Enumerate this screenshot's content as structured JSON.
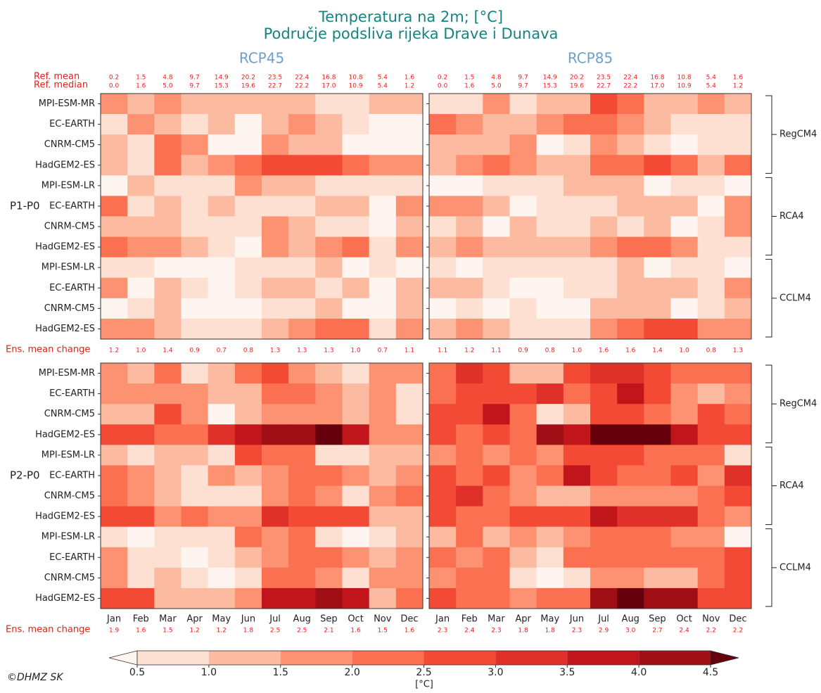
{
  "title": [
    "Temperatura na 2m; [°C]",
    "Područje podsliva rijeka Drave i Dunava"
  ],
  "scenarios": [
    "RCP45",
    "RCP85"
  ],
  "periods": [
    "P1-P0",
    "P2-P0"
  ],
  "ref_mean_label": "Ref. mean",
  "ref_median_label": "Ref. median",
  "ref_mean": [
    "0.2",
    "1.5",
    "4.8",
    "9.7",
    "14.9",
    "20.2",
    "23.5",
    "22.4",
    "16.8",
    "10.8",
    "5.4",
    "1.6"
  ],
  "ref_median": [
    "0.0",
    "1.6",
    "5.0",
    "9.7",
    "15.3",
    "19.6",
    "22.7",
    "22.2",
    "17.0",
    "10.9",
    "5.4",
    "1.2"
  ],
  "ens_label": "Ens. mean change",
  "months": [
    "Jan",
    "Feb",
    "Mar",
    "Apr",
    "May",
    "Jun",
    "Jul",
    "Aug",
    "Sep",
    "Oct",
    "Nov",
    "Dec"
  ],
  "rows": [
    "MPI-ESM-MR",
    "EC-EARTH",
    "CNRM-CM5",
    "HadGEM2-ES",
    "MPI-ESM-LR",
    "EC-EARTH",
    "CNRM-CM5",
    "HadGEM2-ES",
    "MPI-ESM-LR",
    "EC-EARTH",
    "CNRM-CM5",
    "HadGEM2-ES"
  ],
  "groups": [
    "RegCM4",
    "RCA4",
    "CCLM4"
  ],
  "colorbar": {
    "ticks": [
      0.5,
      {
        "value": 1,
        "label": "1.0"
      },
      1.5,
      {
        "value": 2,
        "label": "2.0"
      },
      2.5,
      {
        "value": 3,
        "label": "3.0"
      },
      3.5,
      {
        "value": 4,
        "label": "4.0"
      },
      4.5
    ],
    "colors": [
      "#fff5f0",
      "#fee0d2",
      "#fcbba1",
      "#fc9272",
      "#fb7050",
      "#f34a36",
      "#e0302a",
      "#c0151b",
      "#a00f16",
      "#67000d"
    ],
    "label": "[°C]"
  },
  "credit": "©DHMZ SK",
  "chart_data": [
    {
      "type": "heatmap",
      "ens_mean": [
        "1.2",
        "1.0",
        "1.4",
        "0.9",
        "0.7",
        "0.8",
        "1.3",
        "1.3",
        "1.3",
        "1.0",
        "0.7",
        "1.1"
      ],
      "values": [
        [
          1.8,
          1.3,
          1.8,
          1.3,
          1.3,
          1.3,
          1.3,
          1.3,
          0.8,
          0.8,
          1.3,
          1.3
        ],
        [
          0.8,
          1.8,
          1.3,
          0.8,
          1.3,
          0.3,
          1.3,
          1.8,
          1.3,
          0.8,
          0.3,
          0.3
        ],
        [
          1.3,
          0.8,
          2.3,
          1.8,
          0.3,
          0.3,
          1.8,
          1.3,
          1.3,
          0.3,
          0.3,
          0.3
        ],
        [
          1.3,
          0.8,
          2.3,
          1.3,
          1.8,
          2.3,
          2.8,
          2.8,
          2.8,
          2.3,
          1.8,
          1.8
        ],
        [
          0.3,
          1.3,
          0.8,
          0.8,
          0.8,
          1.8,
          1.3,
          1.3,
          0.8,
          0.8,
          0.8,
          0.8
        ],
        [
          2.3,
          0.8,
          1.3,
          0.8,
          1.3,
          0.8,
          0.8,
          0.8,
          1.3,
          1.3,
          0.3,
          1.8
        ],
        [
          1.3,
          1.3,
          1.3,
          0.8,
          0.8,
          0.8,
          1.8,
          1.3,
          0.8,
          0.8,
          0.3,
          1.3
        ],
        [
          2.3,
          1.8,
          1.8,
          1.3,
          0.8,
          0.3,
          1.8,
          1.3,
          1.8,
          2.3,
          0.8,
          1.8
        ],
        [
          0.8,
          0.8,
          0.3,
          0.3,
          0.3,
          0.8,
          0.8,
          0.8,
          1.3,
          0.3,
          0.8,
          0.3
        ],
        [
          1.8,
          0.3,
          1.3,
          0.8,
          0.3,
          0.8,
          1.3,
          1.3,
          0.8,
          1.3,
          0.3,
          1.3
        ],
        [
          0.3,
          0.8,
          1.3,
          0.3,
          0.3,
          0.3,
          0.8,
          0.8,
          1.3,
          0.3,
          0.3,
          1.3
        ],
        [
          1.8,
          1.8,
          1.3,
          0.8,
          0.8,
          0.8,
          1.3,
          1.8,
          2.3,
          2.3,
          0.8,
          1.8
        ]
      ]
    },
    {
      "type": "heatmap",
      "ens_mean": [
        "1.1",
        "1.2",
        "1.1",
        "0.9",
        "0.8",
        "1.0",
        "1.6",
        "1.6",
        "1.4",
        "1.0",
        "0.8",
        "1.3"
      ],
      "values": [
        [
          0.8,
          0.8,
          1.8,
          0.8,
          1.3,
          1.3,
          2.8,
          2.3,
          1.3,
          1.3,
          1.8,
          1.3
        ],
        [
          2.3,
          1.8,
          1.3,
          1.3,
          1.8,
          2.3,
          2.3,
          1.8,
          1.3,
          0.8,
          0.8,
          0.8
        ],
        [
          1.3,
          1.3,
          1.3,
          1.8,
          0.3,
          0.8,
          1.8,
          1.3,
          0.8,
          0.3,
          0.8,
          0.8
        ],
        [
          1.3,
          1.8,
          2.3,
          1.8,
          1.3,
          1.3,
          2.3,
          2.3,
          2.8,
          2.3,
          1.3,
          2.3
        ],
        [
          0.3,
          0.3,
          0.8,
          0.8,
          0.8,
          1.3,
          1.3,
          1.3,
          0.3,
          0.8,
          0.8,
          0.3
        ],
        [
          1.8,
          1.8,
          1.3,
          0.3,
          0.8,
          0.8,
          0.8,
          1.3,
          1.3,
          1.3,
          0.3,
          1.8
        ],
        [
          0.8,
          1.3,
          0.3,
          1.3,
          0.8,
          0.8,
          1.3,
          0.8,
          1.3,
          0.3,
          0.8,
          1.8
        ],
        [
          1.3,
          1.8,
          1.3,
          1.3,
          1.3,
          1.3,
          1.8,
          2.3,
          2.3,
          1.8,
          0.8,
          0.8
        ],
        [
          0.8,
          0.3,
          0.8,
          0.8,
          0.8,
          0.8,
          0.8,
          1.3,
          0.3,
          0.8,
          0.8,
          0.3
        ],
        [
          1.3,
          1.3,
          0.8,
          0.3,
          0.3,
          0.8,
          0.8,
          1.3,
          1.3,
          1.3,
          0.8,
          1.8
        ],
        [
          0.3,
          0.8,
          0.3,
          0.8,
          0.3,
          0.3,
          1.3,
          1.3,
          1.3,
          0.3,
          0.8,
          1.3
        ],
        [
          1.3,
          1.8,
          1.3,
          0.8,
          0.8,
          0.8,
          1.8,
          2.3,
          2.8,
          2.8,
          1.8,
          1.8
        ]
      ]
    },
    {
      "type": "heatmap",
      "ens_mean": [
        "1.9",
        "1.6",
        "1.5",
        "1.2",
        "1.2",
        "1.8",
        "2.5",
        "2.5",
        "2.1",
        "1.6",
        "1.5",
        "1.6"
      ],
      "values": [
        [
          1.8,
          1.3,
          2.3,
          0.8,
          1.3,
          2.3,
          2.8,
          1.8,
          1.3,
          0.8,
          1.8,
          1.8
        ],
        [
          1.8,
          1.8,
          1.8,
          1.8,
          1.3,
          1.3,
          2.3,
          2.3,
          1.8,
          1.3,
          1.8,
          0.8
        ],
        [
          1.3,
          1.3,
          2.8,
          1.8,
          0.3,
          1.3,
          1.8,
          1.8,
          1.8,
          1.3,
          1.8,
          0.8
        ],
        [
          2.8,
          2.8,
          2.3,
          2.3,
          3.3,
          3.8,
          4.3,
          4.3,
          4.7,
          3.8,
          1.8,
          1.8
        ],
        [
          1.3,
          0.8,
          1.3,
          1.3,
          0.8,
          2.8,
          2.3,
          2.3,
          0.8,
          0.8,
          1.3,
          1.3
        ],
        [
          2.3,
          1.8,
          1.3,
          0.8,
          1.8,
          1.3,
          1.8,
          2.3,
          2.3,
          1.8,
          1.3,
          1.8
        ],
        [
          2.3,
          1.8,
          1.3,
          0.8,
          0.8,
          0.8,
          1.8,
          2.3,
          1.8,
          0.8,
          1.8,
          2.3
        ],
        [
          2.8,
          2.8,
          1.8,
          2.3,
          1.8,
          1.8,
          3.3,
          2.8,
          2.8,
          2.8,
          1.3,
          1.3
        ],
        [
          0.8,
          0.3,
          0.8,
          0.8,
          0.8,
          2.3,
          1.8,
          2.3,
          0.8,
          0.3,
          0.8,
          1.3
        ],
        [
          1.8,
          0.8,
          0.8,
          0.3,
          0.8,
          1.3,
          1.8,
          2.3,
          2.3,
          1.8,
          1.3,
          1.8
        ],
        [
          1.8,
          0.8,
          1.3,
          0.8,
          0.3,
          0.8,
          2.3,
          2.3,
          1.8,
          0.8,
          1.8,
          1.8
        ],
        [
          2.8,
          2.8,
          1.3,
          1.3,
          1.3,
          1.8,
          3.8,
          3.8,
          4.3,
          3.8,
          1.3,
          2.3
        ]
      ]
    },
    {
      "type": "heatmap",
      "ens_mean": [
        "2.3",
        "2.4",
        "2.3",
        "1.8",
        "1.8",
        "2.3",
        "2.9",
        "3.0",
        "2.7",
        "2.4",
        "2.2",
        "2.2"
      ],
      "values": [
        [
          2.3,
          3.3,
          2.8,
          1.3,
          1.3,
          2.8,
          3.3,
          3.3,
          2.8,
          2.3,
          2.3,
          2.3
        ],
        [
          2.3,
          2.8,
          2.8,
          2.8,
          3.3,
          2.3,
          2.8,
          3.8,
          2.8,
          1.8,
          1.3,
          1.8
        ],
        [
          2.8,
          2.8,
          3.8,
          2.3,
          0.8,
          1.3,
          2.8,
          2.8,
          2.3,
          1.8,
          2.8,
          2.3
        ],
        [
          2.8,
          2.3,
          2.8,
          2.3,
          4.3,
          3.8,
          4.7,
          4.7,
          4.7,
          3.8,
          2.8,
          2.8
        ],
        [
          1.8,
          2.3,
          1.8,
          2.3,
          1.8,
          2.8,
          2.8,
          2.8,
          2.3,
          2.3,
          2.3,
          0.8
        ],
        [
          2.8,
          2.3,
          2.8,
          1.8,
          2.3,
          3.8,
          2.8,
          2.3,
          2.3,
          2.8,
          1.8,
          3.3
        ],
        [
          2.8,
          3.3,
          2.3,
          1.8,
          1.3,
          1.3,
          1.8,
          1.8,
          1.8,
          1.8,
          2.3,
          2.8
        ],
        [
          2.8,
          2.3,
          2.3,
          2.8,
          2.8,
          2.8,
          3.8,
          3.3,
          3.3,
          3.3,
          2.3,
          1.8
        ],
        [
          1.3,
          2.3,
          1.3,
          1.8,
          1.3,
          1.8,
          2.3,
          2.3,
          2.3,
          1.8,
          1.8,
          0.3
        ],
        [
          2.3,
          1.8,
          2.3,
          1.3,
          0.8,
          2.3,
          2.3,
          2.3,
          2.3,
          2.3,
          2.3,
          2.8
        ],
        [
          1.8,
          2.3,
          2.3,
          0.8,
          0.3,
          0.8,
          1.8,
          1.8,
          1.3,
          1.3,
          2.3,
          2.8
        ],
        [
          2.8,
          2.3,
          2.3,
          1.8,
          2.3,
          2.3,
          4.3,
          4.7,
          4.3,
          4.3,
          2.8,
          2.8
        ]
      ]
    }
  ]
}
